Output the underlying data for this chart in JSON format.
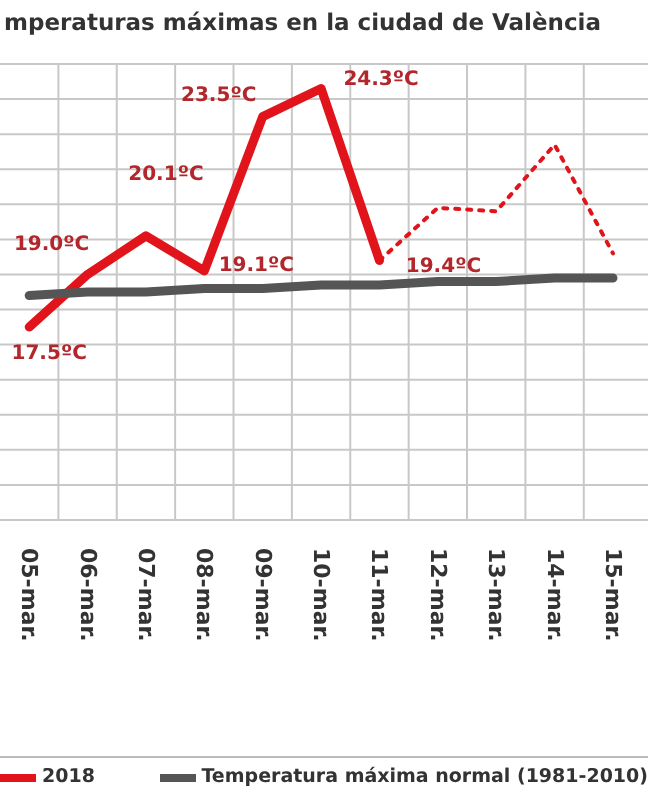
{
  "chart_data": {
    "type": "line",
    "title": "mperaturas máximas en la ciudad de València",
    "categories": [
      "05-mar.",
      "06-mar.",
      "07-mar.",
      "08-mar.",
      "09-mar.",
      "10-mar.",
      "11-mar.",
      "12-mar.",
      "13-mar.",
      "14-mar.",
      "15-mar."
    ],
    "series": [
      {
        "name": "2018",
        "color": "#e0141a",
        "values": [
          17.5,
          19.0,
          20.1,
          19.1,
          23.5,
          24.3,
          19.4,
          null,
          null,
          null,
          null
        ],
        "value_labels": [
          "17.5ºC",
          "19.0ºC",
          "20.1ºC",
          "19.1ºC",
          "23.5ºC",
          "24.3ºC",
          "19.4ºC",
          null,
          null,
          null,
          null
        ]
      },
      {
        "color": "#e0141a",
        "line_style": "dotted",
        "values": [
          null,
          null,
          null,
          null,
          null,
          null,
          19.4,
          20.9,
          20.8,
          22.7,
          19.6
        ]
      },
      {
        "name": "Temperatura máxima normal (1981-2010)",
        "color": "#555555",
        "values": [
          18.4,
          18.5,
          18.5,
          18.6,
          18.6,
          18.7,
          18.7,
          18.8,
          18.8,
          18.9,
          18.9
        ]
      }
    ],
    "ylim": [
      12,
      25
    ],
    "yticks": [
      {
        "value": 12,
        "label": null
      },
      {
        "value": 13,
        "label": null
      },
      {
        "value": 14,
        "label": null
      },
      {
        "value": 15,
        "label": null
      },
      {
        "value": 16,
        "label": null
      },
      {
        "value": 17,
        "label": null
      },
      {
        "value": 18,
        "label": null
      },
      {
        "value": 19,
        "label": null
      },
      {
        "value": 20,
        "label": null
      },
      {
        "value": 21,
        "label": null
      },
      {
        "value": 22,
        "label": null
      },
      {
        "value": 23,
        "label": null
      },
      {
        "value": 24,
        "label": null
      },
      {
        "value": 25,
        "label": null
      }
    ],
    "tick_labels": "x",
    "grid": true,
    "legend": "bottom",
    "marker": "none",
    "line_style": "solid"
  }
}
